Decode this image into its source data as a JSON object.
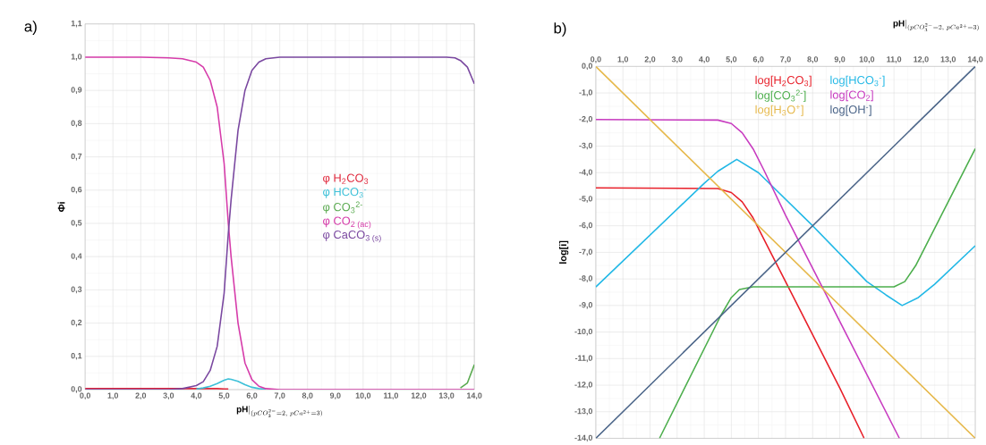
{
  "chart_data": [
    {
      "type": "line",
      "title": "a)",
      "xlabel": "\\mathbf{pH}|_{(pCO_3^{2-}=2,\\ pCa^{2+}=3)}",
      "ylabel": "Φi",
      "grid": true,
      "legend": "right",
      "xlim": [
        0,
        14
      ],
      "ylim": [
        0,
        1.1
      ],
      "xticks": [
        {
          "value": 0,
          "label": "0,0"
        },
        {
          "value": 1,
          "label": "1,0"
        },
        {
          "value": 2,
          "label": "2,0"
        },
        {
          "value": 3,
          "label": "3,0"
        },
        {
          "value": 4,
          "label": "4,0"
        },
        {
          "value": 5,
          "label": "5,0"
        },
        {
          "value": 6,
          "label": "6,0"
        },
        {
          "value": 7,
          "label": "7,0"
        },
        {
          "value": 8,
          "label": "8,0"
        },
        {
          "value": 9,
          "label": "9,0"
        },
        {
          "value": 10,
          "label": "10,0"
        },
        {
          "value": 11,
          "label": "11,0"
        },
        {
          "value": 12,
          "label": "12,0"
        },
        {
          "value": 13,
          "label": "13,0"
        },
        {
          "value": 14,
          "label": "14,0"
        }
      ],
      "yticks": [
        {
          "value": 0,
          "label": "0,0"
        },
        {
          "value": 0.1,
          "label": "0,1"
        },
        {
          "value": 0.2,
          "label": "0,2"
        },
        {
          "value": 0.3,
          "label": "0,3"
        },
        {
          "value": 0.4,
          "label": "0,4"
        },
        {
          "value": 0.5,
          "label": "0,5"
        },
        {
          "value": 0.6,
          "label": "0,6"
        },
        {
          "value": 0.7,
          "label": "0,7"
        },
        {
          "value": 0.8,
          "label": "0,8"
        },
        {
          "value": 0.9,
          "label": "0,9"
        },
        {
          "value": 1,
          "label": "1,0"
        },
        {
          "value": 1.1,
          "label": "1,1"
        }
      ],
      "x": [
        0,
        1,
        2,
        3,
        3.5,
        4,
        4.25,
        4.5,
        4.75,
        5,
        5.15,
        5.25,
        5.5,
        5.75,
        6,
        6.25,
        6.5,
        7,
        8,
        9,
        10,
        11,
        12,
        13,
        13.3,
        13.5,
        13.75,
        14
      ],
      "series": [
        {
          "name": "φ H$_{2}$CO$_{3}$",
          "color": "#e0283c",
          "values": [
            0.003,
            0.003,
            0.003,
            0.003,
            0.003,
            0.003,
            0.003,
            0.003,
            0.003,
            0.002,
            0.002,
            null,
            null,
            null,
            null,
            null,
            null,
            null,
            null,
            null,
            null,
            null,
            null,
            null,
            null,
            null,
            null,
            null
          ]
        },
        {
          "name": "φ HCO$_{3}$$^{-}$",
          "color": "#3cc0d8",
          "values": [
            null,
            null,
            null,
            null,
            null,
            0.002,
            0.005,
            0.01,
            0.018,
            0.028,
            0.032,
            0.031,
            0.025,
            0.015,
            0.007,
            0.003,
            0.001,
            null,
            null,
            null,
            null,
            null,
            null,
            null,
            null,
            null,
            null,
            null
          ]
        },
        {
          "name": "φ CO$_{3}$$^{2-}$",
          "color": "#5aaa50",
          "values": [
            null,
            null,
            null,
            null,
            null,
            null,
            null,
            null,
            null,
            null,
            null,
            null,
            null,
            null,
            null,
            null,
            null,
            null,
            null,
            null,
            null,
            null,
            null,
            null,
            null,
            0.005,
            0.02,
            0.075
          ]
        },
        {
          "name": "φ CO$_{2 (ac)}$",
          "color": "#d63caa",
          "values": [
            1,
            1,
            1,
            0.998,
            0.995,
            0.985,
            0.97,
            0.93,
            0.85,
            0.68,
            0.5,
            0.4,
            0.2,
            0.08,
            0.03,
            0.01,
            0.003,
            0,
            0,
            0,
            0,
            0,
            0,
            0,
            0,
            0,
            0,
            0
          ]
        },
        {
          "name": "φ CaCO$_{3 (s)}$",
          "color": "#7a48a0",
          "values": [
            0,
            0,
            0,
            0,
            0.003,
            0.012,
            0.024,
            0.058,
            0.13,
            0.29,
            0.47,
            0.57,
            0.78,
            0.9,
            0.96,
            0.985,
            0.995,
            1,
            1,
            1,
            1,
            1,
            1,
            1,
            0.998,
            0.99,
            0.97,
            0.92
          ]
        }
      ]
    },
    {
      "type": "line",
      "title": "b)",
      "xlabel": "\\mathbf{pH}|_{(pCO_3^{2-}=2,\\ pCa^{2+}=3)}",
      "ylabel": "log[i]",
      "grid": true,
      "legend": "top right",
      "xlim": [
        0,
        14
      ],
      "ylim": [
        -14,
        0
      ],
      "xticks": [
        {
          "value": 0,
          "label": "0,0"
        },
        {
          "value": 1,
          "label": "1,0"
        },
        {
          "value": 2,
          "label": "2,0"
        },
        {
          "value": 3,
          "label": "3,0"
        },
        {
          "value": 4,
          "label": "4,0"
        },
        {
          "value": 5,
          "label": "5,0"
        },
        {
          "value": 6,
          "label": "6,0"
        },
        {
          "value": 7,
          "label": "7,0"
        },
        {
          "value": 8,
          "label": "8,0"
        },
        {
          "value": 9,
          "label": "9,0"
        },
        {
          "value": 10,
          "label": "10,0"
        },
        {
          "value": 11,
          "label": "11,0"
        },
        {
          "value": 12,
          "label": "12,0"
        },
        {
          "value": 13,
          "label": "13,0"
        },
        {
          "value": 14,
          "label": "14,0"
        }
      ],
      "yticks": [
        {
          "value": 0,
          "label": "0,0"
        },
        {
          "value": -1,
          "label": "-1,0"
        },
        {
          "value": -2,
          "label": "-2,0"
        },
        {
          "value": -3,
          "label": "-3,0"
        },
        {
          "value": -4,
          "label": "-4,0"
        },
        {
          "value": -5,
          "label": "-5,0"
        },
        {
          "value": -6,
          "label": "-6,0"
        },
        {
          "value": -7,
          "label": "-7,0"
        },
        {
          "value": -8,
          "label": "-8,0"
        },
        {
          "value": -9,
          "label": "-9,0"
        },
        {
          "value": -10,
          "label": "-10,0"
        },
        {
          "value": -11,
          "label": "-11,0"
        },
        {
          "value": -12,
          "label": "-12,0"
        },
        {
          "value": -13,
          "label": "-13,0"
        },
        {
          "value": -14,
          "label": "-14,0"
        }
      ],
      "series": [
        {
          "name": "log[H$_{2}$CO$_{3}$]",
          "color": "#e8202a",
          "x": [
            0,
            4.5,
            5,
            5.4,
            5.8,
            6.2,
            7,
            9,
            9.9
          ],
          "values": [
            -4.57,
            -4.6,
            -4.75,
            -5.1,
            -5.7,
            -6.5,
            -8.1,
            -12.1,
            -14
          ]
        },
        {
          "name": "log[HCO$_{3}$$^{-}$]",
          "color": "#22b8e6",
          "x": [
            0,
            4,
            4.5,
            5.2,
            6,
            8,
            10,
            10.7,
            11.3,
            11.9,
            12.5,
            14
          ],
          "values": [
            -8.3,
            -4.4,
            -3.95,
            -3.5,
            -4,
            -6,
            -8.1,
            -8.6,
            -9,
            -8.7,
            -8.2,
            -6.75
          ]
        },
        {
          "name": "log[CO$_{3}$$^{2-}$]",
          "color": "#4cae4c",
          "x": [
            2.35,
            4.6,
            5,
            5.3,
            5.8,
            11,
            11.4,
            11.8,
            14
          ],
          "values": [
            -14,
            -9.4,
            -8.7,
            -8.4,
            -8.3,
            -8.3,
            -8.1,
            -7.5,
            -3.1
          ]
        },
        {
          "name": "log[CO$_{2}$]",
          "color": "#c83cc0",
          "x": [
            0,
            4.5,
            5,
            5.4,
            5.8,
            6.2,
            7,
            9,
            11.2
          ],
          "values": [
            -2,
            -2.02,
            -2.15,
            -2.5,
            -3.1,
            -3.9,
            -5.6,
            -9.6,
            -14
          ]
        },
        {
          "name": "log[H$_{3}$O$^{+}$]",
          "color": "#e6b84a",
          "x": [
            0,
            14
          ],
          "values": [
            0,
            -14
          ]
        },
        {
          "name": "log[OH$^{-}$]",
          "color": "#4a6488",
          "x": [
            0,
            14
          ],
          "values": [
            -14,
            0
          ]
        }
      ]
    }
  ]
}
